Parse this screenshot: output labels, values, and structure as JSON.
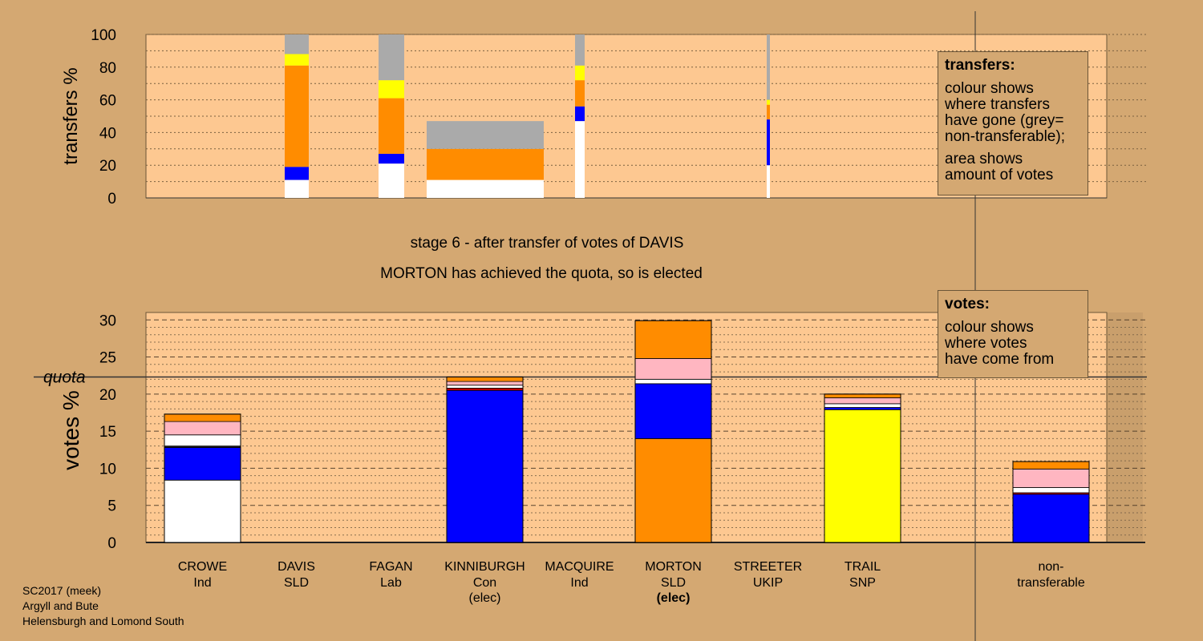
{
  "chart_data": [
    {
      "type": "bar",
      "ylabel": "transfers %",
      "ylim": [
        0,
        100
      ],
      "yticks": [
        0,
        20,
        40,
        60,
        80,
        100
      ],
      "stacked": true,
      "note": "columns span the x range of the candidate whose votes were transferred; stacked colours show destination",
      "columns": [
        {
          "candidate": "DAVIS",
          "segments": [
            {
              "color": "#ffffff",
              "value": 11
            },
            {
              "color": "#0000ff",
              "value": 8
            },
            {
              "color": "#ff8c00",
              "value": 62
            },
            {
              "color": "#ffff00",
              "value": 7
            },
            {
              "color": "#aaaaaa",
              "value": 12
            }
          ]
        },
        {
          "candidate": "FAGAN",
          "segments": [
            {
              "color": "#ffffff",
              "value": 21
            },
            {
              "color": "#0000ff",
              "value": 6
            },
            {
              "color": "#ff8c00",
              "value": 34
            },
            {
              "color": "#ffff00",
              "value": 11
            },
            {
              "color": "#aaaaaa",
              "value": 28
            }
          ]
        },
        {
          "candidate": "KINNIBURGH",
          "segments": [
            {
              "color": "#ffffff",
              "value": 11
            },
            {
              "color": "#ff8c00",
              "value": 19
            },
            {
              "color": "#aaaaaa",
              "value": 17
            }
          ]
        },
        {
          "candidate": "MACQUIRE",
          "segments": [
            {
              "color": "#ffffff",
              "value": 47
            },
            {
              "color": "#0000ff",
              "value": 9
            },
            {
              "color": "#ff8c00",
              "value": 16
            },
            {
              "color": "#ffff00",
              "value": 9
            },
            {
              "color": "#aaaaaa",
              "value": 19
            }
          ]
        },
        {
          "candidate": "STREETER",
          "segments": [
            {
              "color": "#ffffff",
              "value": 20
            },
            {
              "color": "#0000ff",
              "value": 28
            },
            {
              "color": "#ff8c00",
              "value": 9
            },
            {
              "color": "#ffff00",
              "value": 3
            },
            {
              "color": "#aaaaaa",
              "value": 40
            }
          ]
        }
      ]
    },
    {
      "type": "bar",
      "ylabel": "votes %",
      "ylim": [
        0,
        31
      ],
      "yticks": [
        0,
        5,
        10,
        15,
        20,
        25,
        30
      ],
      "quota": 22.3,
      "quota_label": "quota",
      "stacked": true,
      "categories": [
        "CROWE",
        "DAVIS",
        "FAGAN",
        "KINNIBURGH",
        "MACQUIRE",
        "MORTON",
        "STREETER",
        "TRAIL",
        "non-transferable"
      ],
      "series_values": [
        {
          "candidate": "CROWE",
          "segments": [
            {
              "color": "#ffffff",
              "value": 8.4
            },
            {
              "color": "#0000ff",
              "value": 4.4
            },
            {
              "color": "#222222",
              "value": 0.2
            },
            {
              "color": "#ffffff",
              "value": 1.5
            },
            {
              "color": "#ffb6c1",
              "value": 1.8
            },
            {
              "color": "#ff8c00",
              "value": 1.0
            }
          ]
        },
        {
          "candidate": "DAVIS",
          "segments": []
        },
        {
          "candidate": "FAGAN",
          "segments": []
        },
        {
          "candidate": "KINNIBURGH",
          "segments": [
            {
              "color": "#0000ff",
              "value": 20.5
            },
            {
              "color": "#cc0000",
              "value": 0.3
            },
            {
              "color": "#ffffff",
              "value": 0.4
            },
            {
              "color": "#ffb6c1",
              "value": 0.5
            },
            {
              "color": "#ff8c00",
              "value": 0.6
            }
          ]
        },
        {
          "candidate": "MACQUIRE",
          "segments": []
        },
        {
          "candidate": "MORTON",
          "segments": [
            {
              "color": "#ff8c00",
              "value": 14.0
            },
            {
              "color": "#0000ff",
              "value": 7.4
            },
            {
              "color": "#ffffff",
              "value": 0.6
            },
            {
              "color": "#ffb6c1",
              "value": 2.8
            },
            {
              "color": "#ff8c00",
              "value": 5.1
            }
          ]
        },
        {
          "candidate": "STREETER",
          "segments": []
        },
        {
          "candidate": "TRAIL",
          "segments": [
            {
              "color": "#ffff00",
              "value": 17.9
            },
            {
              "color": "#0000ff",
              "value": 0.3
            },
            {
              "color": "#ffffff",
              "value": 0.5
            },
            {
              "color": "#ffb6c1",
              "value": 0.8
            },
            {
              "color": "#ff8c00",
              "value": 0.5
            }
          ]
        },
        {
          "candidate": "non-transferable",
          "segments": [
            {
              "color": "#0000ff",
              "value": 6.5
            },
            {
              "color": "#cc0000",
              "value": 0.2
            },
            {
              "color": "#ffffff",
              "value": 0.7
            },
            {
              "color": "#ffb6c1",
              "value": 2.5
            },
            {
              "color": "#ff8c00",
              "value": 1.0
            }
          ]
        }
      ],
      "x_labels": [
        {
          "line1": "CROWE",
          "line2": "Ind",
          "line3": ""
        },
        {
          "line1": "DAVIS",
          "line2": "SLD",
          "line3": ""
        },
        {
          "line1": "FAGAN",
          "line2": "Lab",
          "line3": ""
        },
        {
          "line1": "KINNIBURGH",
          "line2": "Con",
          "line3": "(elec)"
        },
        {
          "line1": "MACQUIRE",
          "line2": "Ind",
          "line3": ""
        },
        {
          "line1": "MORTON",
          "line2": "SLD",
          "line3": "(elec)",
          "bold3": true
        },
        {
          "line1": "STREETER",
          "line2": "UKIP",
          "line3": ""
        },
        {
          "line1": "TRAIL",
          "line2": "SNP",
          "line3": ""
        },
        {
          "line1": "non-",
          "line2": "transferable",
          "line3": ""
        }
      ]
    }
  ],
  "stage_title": "stage 6 - after transfer of votes of DAVIS",
  "stage_subtitle": "MORTON has achieved the quota, so is elected",
  "legend_transfers": {
    "title": "transfers:",
    "line1": "colour shows",
    "line2": "where transfers",
    "line3": "have gone (grey=",
    "line4": "non-transferable);",
    "line5": "area shows",
    "line6": "amount of votes"
  },
  "legend_votes": {
    "title": "votes:",
    "line1": "colour shows",
    "line2": "where votes",
    "line3": "have come from"
  },
  "footer": {
    "line1": "SC2017 (meek)",
    "line2": "Argyll and Bute",
    "line3": "Helensburgh and Lomond South"
  },
  "colors": {
    "background": "#d4a872",
    "plot_background": "#fdc891",
    "blue": "#0000ff",
    "orange": "#ff8c00",
    "yellow": "#ffff00",
    "pink": "#ffb6c1",
    "grey": "#aaaaaa",
    "white": "#ffffff"
  }
}
